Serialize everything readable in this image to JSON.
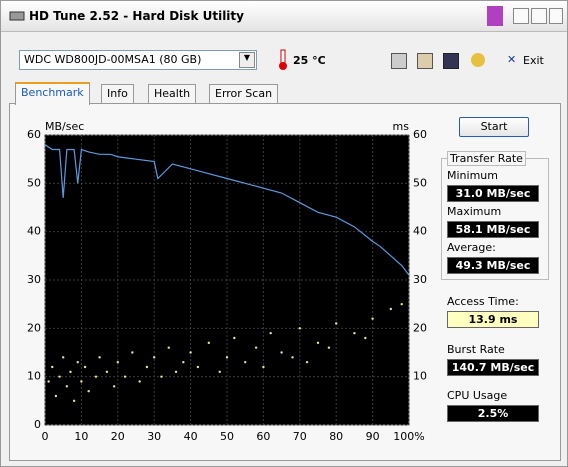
{
  "window": {
    "title": "HD Tune 2.52 - Hard Disk Utility"
  },
  "toolbar": {
    "drive": "WDC WD800JD-00MSA1 (80 GB)",
    "temperature": "25 °C",
    "exit": "Exit"
  },
  "tabs": [
    "Benchmark",
    "Info",
    "Health",
    "Error Scan"
  ],
  "start_button": "Start",
  "stats": {
    "group_title": "Transfer Rate",
    "minimum_label": "Minimum",
    "minimum": "31.0 MB/sec",
    "maximum_label": "Maximum",
    "maximum": "58.1 MB/sec",
    "average_label": "Average:",
    "average": "49.3 MB/sec",
    "access_time_label": "Access Time:",
    "access_time": "13.9 ms",
    "burst_rate_label": "Burst Rate",
    "burst_rate": "140.7 MB/sec",
    "cpu_usage_label": "CPU Usage",
    "cpu_usage": "2.5%"
  },
  "chart_data": {
    "type": "line",
    "y_label": "MB/sec",
    "y2_label": "ms",
    "xlim": [
      0,
      100
    ],
    "xticks": [
      0,
      10,
      20,
      30,
      40,
      50,
      60,
      70,
      80,
      90,
      {
        "value": 100,
        "label": "100%"
      }
    ],
    "ylim": [
      0,
      60
    ],
    "yticks": [
      0,
      10,
      20,
      30,
      40,
      50,
      60
    ],
    "y2lim": [
      0,
      60
    ],
    "y2ticks": [
      10,
      20,
      30,
      40,
      50,
      60
    ],
    "grid": true,
    "series": [
      {
        "type": "line",
        "color": "#5a9be0",
        "x": [
          0,
          2,
          4,
          5,
          6,
          8,
          9,
          10,
          12,
          15,
          18,
          20,
          25,
          30,
          31,
          35,
          40,
          45,
          50,
          55,
          60,
          65,
          70,
          75,
          80,
          85,
          90,
          92,
          95,
          98,
          100
        ],
        "values": [
          58,
          57,
          57,
          47,
          57,
          57,
          50,
          57,
          56.5,
          56,
          56,
          55.5,
          55,
          54.5,
          51,
          54,
          53,
          52,
          51,
          50,
          49,
          48,
          46,
          44,
          43,
          41,
          38,
          37,
          35,
          33,
          31
        ]
      },
      {
        "type": "scatter",
        "color": "#e8e290",
        "axis": "y2",
        "x": [
          1,
          2,
          3,
          4,
          5,
          6,
          7,
          8,
          9,
          10,
          11,
          12,
          14,
          15,
          17,
          19,
          20,
          22,
          24,
          26,
          28,
          30,
          32,
          34,
          36,
          38,
          40,
          42,
          45,
          48,
          50,
          52,
          55,
          58,
          60,
          62,
          65,
          68,
          70,
          72,
          75,
          78,
          80,
          85,
          88,
          90,
          95,
          98
        ],
        "values": [
          9,
          12,
          6,
          10,
          14,
          8,
          11,
          5,
          13,
          9,
          12,
          7,
          10,
          14,
          11,
          8,
          13,
          10,
          15,
          9,
          12,
          14,
          10,
          16,
          11,
          13,
          15,
          12,
          17,
          11,
          14,
          18,
          13,
          16,
          12,
          19,
          15,
          14,
          20,
          13,
          17,
          16,
          21,
          19,
          18,
          22,
          24,
          25
        ]
      }
    ]
  }
}
